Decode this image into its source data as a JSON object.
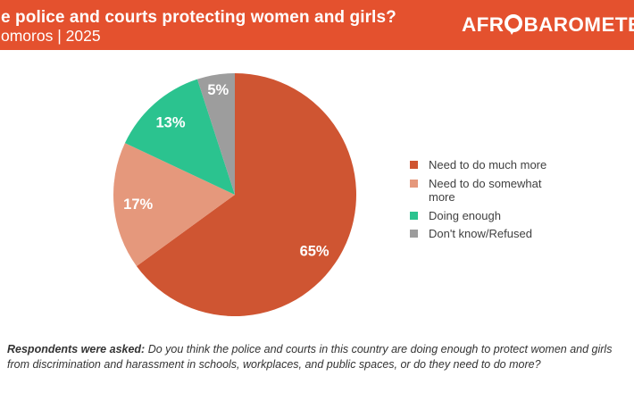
{
  "header": {
    "title": "e police and courts protecting women and girls?",
    "subtitle": "omoros | 2025",
    "logo_text_pre": "AFR",
    "logo_text_post": "BAROMETER",
    "logo_o_icon": "speech-bubble-o-icon"
  },
  "chart_data": {
    "type": "pie",
    "title": "e police and courts protecting women and girls?",
    "subtitle": "omoros | 2025",
    "start_angle_deg": 0,
    "direction": "clockwise",
    "legend_position": "right",
    "slices": [
      {
        "label": "Need to do much more",
        "value": 65,
        "data_label": "65%",
        "color": "#CF5532"
      },
      {
        "label": "Need to do somewhat more",
        "value": 17,
        "data_label": "17%",
        "color": "#E5987C"
      },
      {
        "label": "Doing enough",
        "value": 13,
        "data_label": "13%",
        "color": "#2BC38F"
      },
      {
        "label": "Don't know/Refused",
        "value": 5,
        "data_label": "5%",
        "color": "#9D9D9D"
      }
    ]
  },
  "footer": {
    "lead": "Respondents were asked:",
    "question": "Do you think the police and courts in this country are doing enough to protect women and girls from discrimination and harassment in schools, workplaces, and public spaces, or do they need to do more?"
  },
  "colors": {
    "header_background": "#E4512E",
    "header_text": "#FFFFFF",
    "pie_label_text": "#FFFFFF",
    "legend_text": "#404040",
    "footer_text": "#333333"
  }
}
